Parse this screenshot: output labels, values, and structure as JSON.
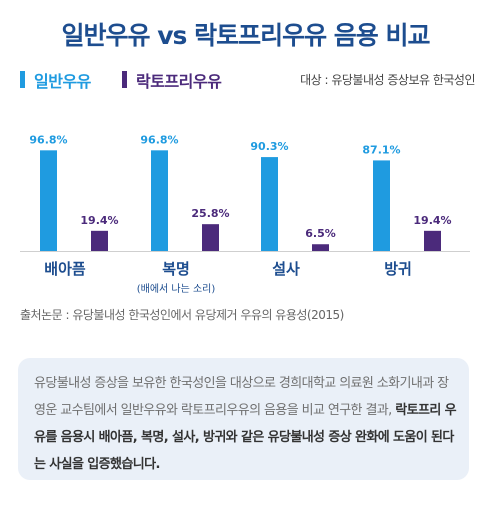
{
  "title": "일반우유 vs 락토프리우유 음용 비교",
  "legend": {
    "items": [
      {
        "label": "일반우유",
        "color": "#1f9be0"
      },
      {
        "label": "락토프리우유",
        "color": "#4b2a7b"
      }
    ],
    "subject": "대상 : 유당불내성 증상보유 한국성인"
  },
  "chart_data": {
    "type": "bar",
    "categories": [
      "배아픔",
      "복명",
      "설사",
      "방귀"
    ],
    "category_notes": [
      "",
      "(배에서 나는 소리)",
      "",
      ""
    ],
    "series": [
      {
        "name": "일반우유",
        "values": [
          96.8,
          96.8,
          90.3,
          87.1
        ],
        "labels": [
          "96.8%",
          "96.8%",
          "90.3%",
          "87.1%"
        ],
        "color": "#1f9be0"
      },
      {
        "name": "락토프리우유",
        "values": [
          19.4,
          25.8,
          6.5,
          19.4
        ],
        "labels": [
          "19.4%",
          "25.8%",
          "6.5%",
          "19.4%"
        ],
        "color": "#4b2a7b"
      }
    ],
    "ylim": [
      0,
      100
    ],
    "grid": false
  },
  "source": "출처논문 : 유당불내성 한국성인에서 유당제거 우유의 유용성(2015)",
  "summary": {
    "text1": "유당불내성 증상을 보유한 한국성인을 대상으로 경희대학교 의료원 소화기내과 장영운 교수팀에서 일반우유와 락토프리우유의 음용을 비교 연구한 결과, ",
    "highlight": "락토프리 우유를 음용시 배아픔, 복명, 설사, 방귀와 같은 유당불내성 증상 완화에 도움이 된다는 사실을 입증했습니다."
  }
}
